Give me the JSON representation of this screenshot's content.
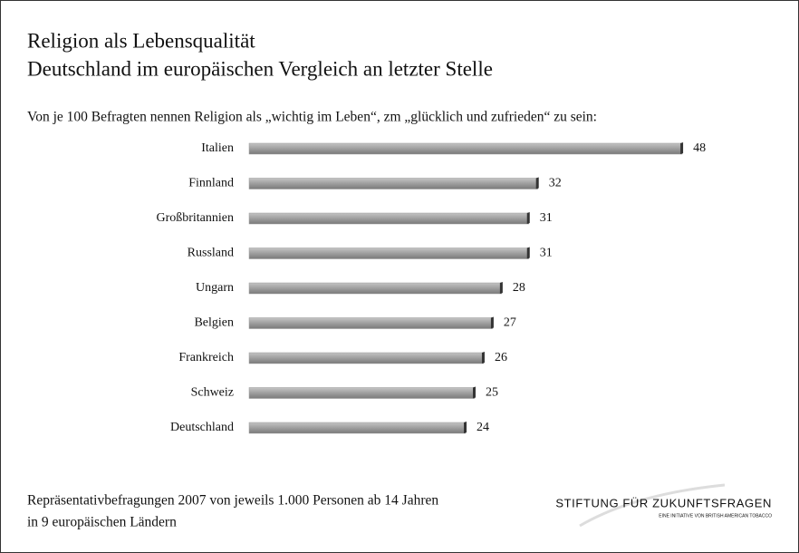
{
  "chart_data": {
    "type": "bar",
    "orientation": "horizontal",
    "title": "Religion als Lebensqualität",
    "subtitle": "Deutschland im europäischen Vergleich an letzter Stelle",
    "description": "Von je 100 Befragten nennen Religion als „wichtig im Leben“, zm „glücklich und zufrieden“ zu sein:",
    "categories": [
      "Italien",
      "Finnland",
      "Großbritannien",
      "Russland",
      "Ungarn",
      "Belgien",
      "Frankreich",
      "Schweiz",
      "Deutschland"
    ],
    "values": [
      48,
      32,
      31,
      31,
      28,
      27,
      26,
      25,
      24
    ],
    "color": "#9a9a9a",
    "footnote": [
      "Repräsentativbefragungen 2007 von jeweils 1.000 Personen ab 14 Jahren",
      "in 9 europäischen Ländern"
    ],
    "logo": {
      "name": "STIFTUNG FÜR ZUKUNFTSFRAGEN",
      "tagline": "EINE INITIATIVE VON BRITISH AMERICAN TOBACCO"
    }
  }
}
